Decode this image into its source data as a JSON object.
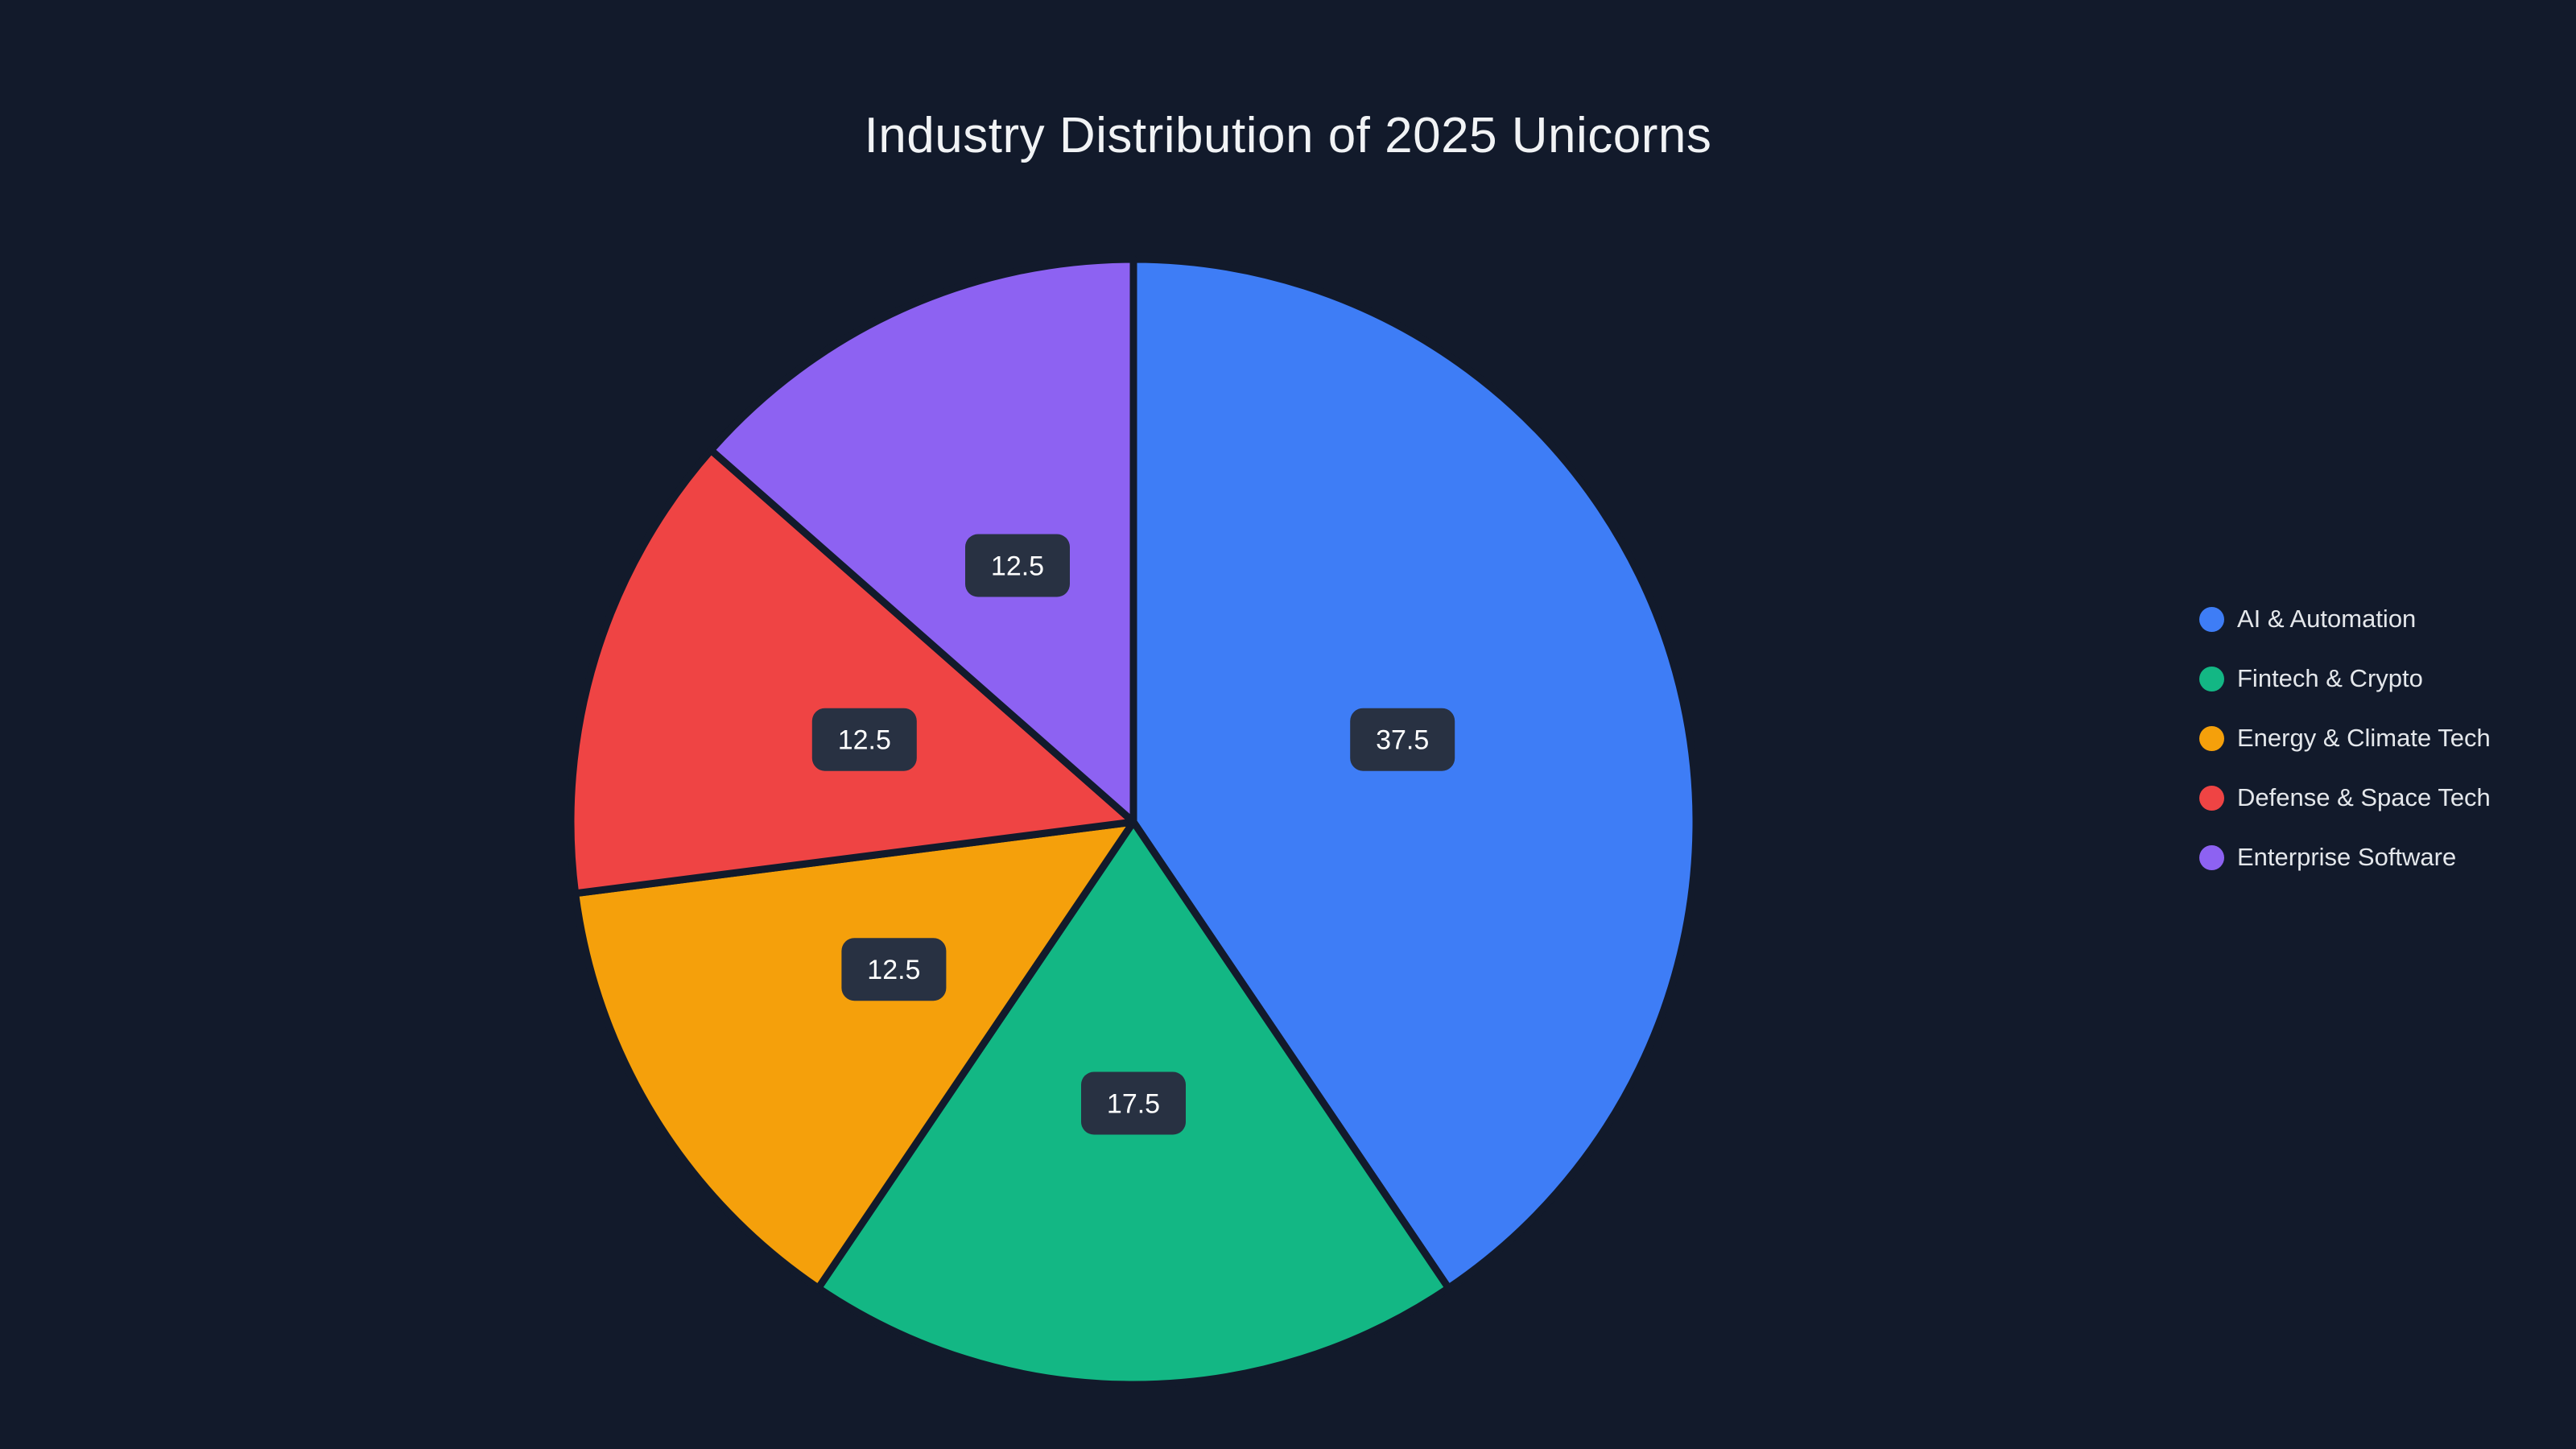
{
  "chart_data": {
    "type": "pie",
    "title": "Industry Distribution of 2025 Unicorns",
    "labels": [
      "AI & Automation",
      "Fintech & Crypto",
      "Energy & Climate Tech",
      "Defense & Space Tech",
      "Enterprise Software"
    ],
    "values": [
      37.5,
      17.5,
      12.5,
      12.5,
      12.5
    ],
    "value_labels": [
      "37.5",
      "17.5",
      "12.5",
      "12.5",
      "12.5"
    ],
    "colors": [
      "#3e7df6",
      "#13b784",
      "#f5a00b",
      "#ef4444",
      "#8d62f2"
    ],
    "direction": "clockwise",
    "start_angle_deg": 0,
    "legend_position": "right",
    "label_position": "inside",
    "background": "#121a2b",
    "label_chip_bg": "#283142",
    "label_text_color": "#ffffff",
    "title_color": "#f1f3f5",
    "legend_text_color": "#e4e7eb"
  }
}
